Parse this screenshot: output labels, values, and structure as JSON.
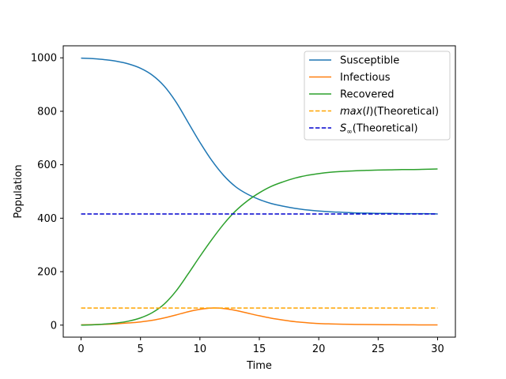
{
  "chart_data": {
    "type": "line",
    "title": "",
    "xlabel": "Time",
    "ylabel": "Population",
    "xlim": [
      -1.5,
      31.5
    ],
    "ylim": [
      -45,
      1045
    ],
    "xticks": [
      0,
      5,
      10,
      15,
      20,
      25,
      30
    ],
    "yticks": [
      0,
      200,
      400,
      600,
      800,
      1000
    ],
    "grid": false,
    "legend_position": "top-right",
    "series": [
      {
        "name": "Susceptible",
        "color": "#1f77b4",
        "style": "solid",
        "x": [
          0,
          1,
          2,
          3,
          4,
          5,
          6,
          7,
          8,
          9,
          10,
          11,
          12,
          13,
          14,
          15,
          16,
          17,
          18,
          19,
          20,
          21,
          22,
          23,
          24,
          25,
          26,
          27,
          28,
          29,
          30
        ],
        "y": [
          999,
          997,
          993,
          987,
          977,
          961,
          935,
          894,
          834,
          759,
          684,
          616,
          560,
          518,
          490,
          470,
          455,
          445,
          437,
          431,
          427,
          424,
          422,
          420,
          419,
          418,
          418,
          417,
          417,
          417,
          416
        ]
      },
      {
        "name": "Infectious",
        "color": "#ff7f0e",
        "style": "solid",
        "x": [
          0,
          1,
          2,
          3,
          4,
          5,
          6,
          7,
          8,
          9,
          10,
          11,
          12,
          13,
          14,
          15,
          16,
          17,
          18,
          19,
          20,
          21,
          22,
          23,
          24,
          25,
          26,
          27,
          28,
          29,
          30
        ],
        "y": [
          1,
          2,
          3,
          5,
          8,
          12,
          18,
          27,
          38,
          50,
          59,
          64,
          62,
          55,
          45,
          35,
          26,
          19,
          13,
          9,
          6,
          4.5,
          3.5,
          2.8,
          2.2,
          1.8,
          1.5,
          1.2,
          1,
          0.8,
          0.6
        ]
      },
      {
        "name": "Recovered",
        "color": "#2ca02c",
        "style": "solid",
        "x": [
          0,
          1,
          2,
          3,
          4,
          5,
          6,
          7,
          8,
          9,
          10,
          11,
          12,
          13,
          14,
          15,
          16,
          17,
          18,
          19,
          20,
          21,
          22,
          23,
          24,
          25,
          26,
          27,
          28,
          29,
          30
        ],
        "y": [
          0,
          1,
          4,
          8,
          15,
          27,
          47,
          79,
          128,
          191,
          257,
          320,
          378,
          427,
          465,
          495,
          519,
          536,
          550,
          560,
          567,
          572,
          575,
          577,
          579,
          580,
          581,
          582,
          582,
          583,
          584
        ]
      },
      {
        "name": "$max(I)$(Theoretical)",
        "label_main": "max",
        "label_arg": "(I)",
        "label_rest": "(Theoretical)",
        "color": "#ffa500",
        "style": "dashed",
        "x": [
          0,
          30
        ],
        "y": [
          64,
          64
        ]
      },
      {
        "name": "$S_\\infty$(Theoretical)",
        "label_main": "S",
        "label_sub": "∞",
        "label_rest": "(Theoretical)",
        "color": "#0000cd",
        "style": "dashed",
        "x": [
          0,
          30
        ],
        "y": [
          416,
          416
        ]
      }
    ]
  }
}
